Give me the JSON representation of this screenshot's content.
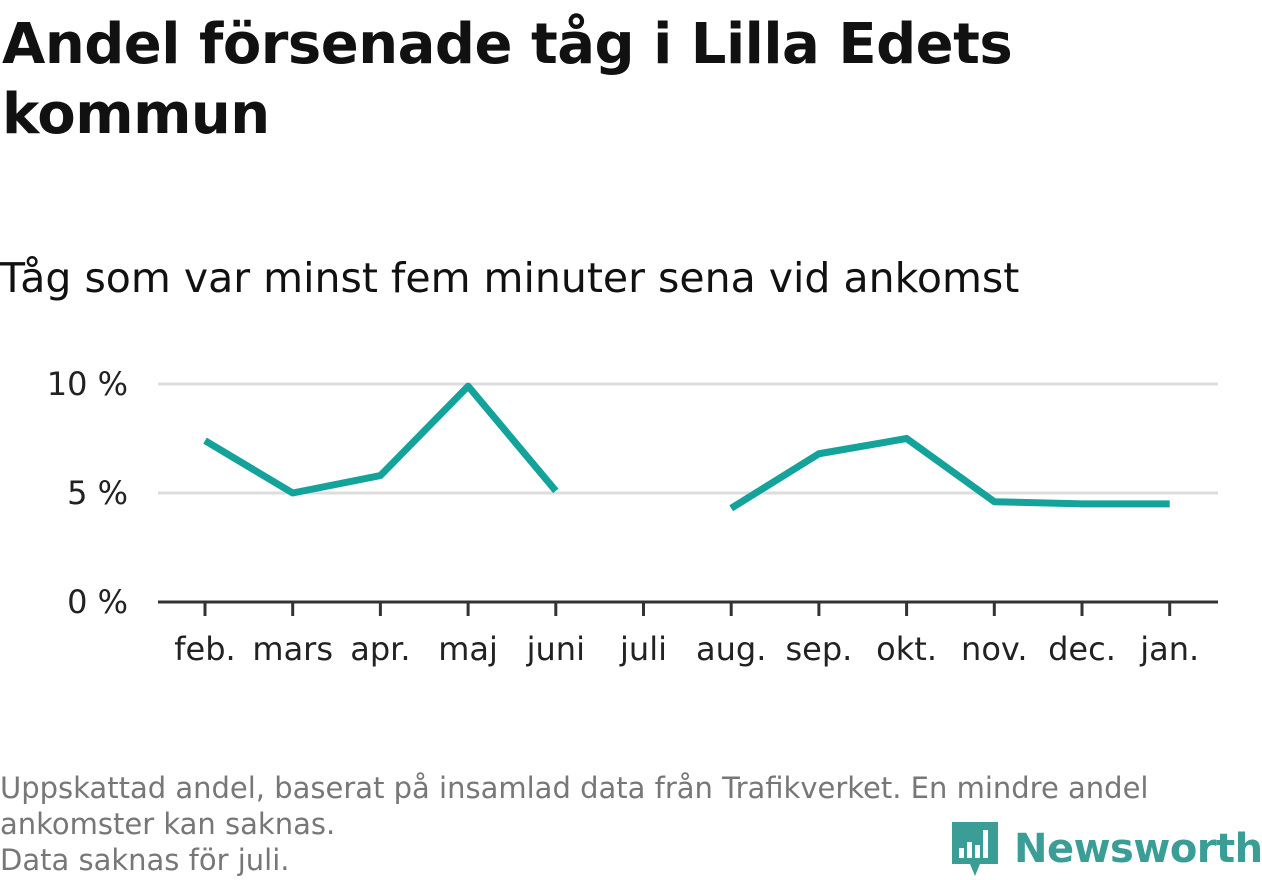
{
  "title": "Andel försenade tåg i Lilla Edets kommun",
  "subtitle": "Tåg som var minst fem minuter sena vid ankomst",
  "footnote_line1": "Uppskattad andel, baserat på insamlad data från Trafikverket. En mindre andel ankomster kan saknas.",
  "footnote_line2": "Data saknas för juli.",
  "logo_text": "Newsworthy",
  "colors": {
    "line": "#14a39a",
    "grid": "#dddddd",
    "axis": "#333333",
    "logo": "#3a9d96"
  },
  "chart_data": {
    "type": "line",
    "categories": [
      "feb.",
      "mars",
      "apr.",
      "maj",
      "juni",
      "juli",
      "aug.",
      "sep.",
      "okt.",
      "nov.",
      "dec.",
      "jan."
    ],
    "series": [
      {
        "values": [
          7.4,
          5.0,
          5.8,
          9.9,
          5.1,
          null,
          4.3,
          6.8,
          7.5,
          4.6,
          4.5,
          4.5
        ]
      }
    ],
    "yticks": [
      "0 %",
      "5 %",
      "10 %"
    ],
    "ytick_values": [
      0,
      5,
      10
    ],
    "ylim": [
      0,
      10
    ],
    "grid": true,
    "legend": "none"
  }
}
